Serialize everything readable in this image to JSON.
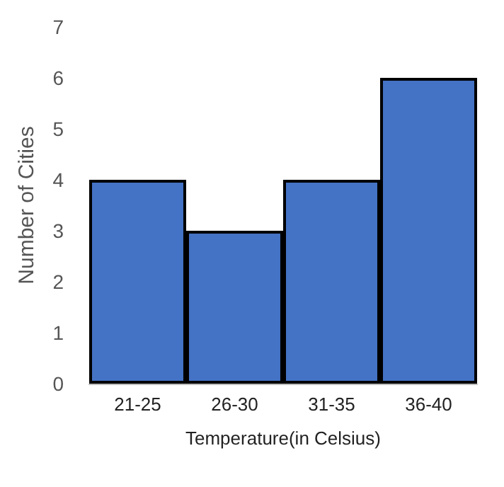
{
  "chart_data": {
    "type": "bar",
    "xlabel": "Temperature(in Celsius)",
    "ylabel": "Number of Cities",
    "categories": [
      "21-25",
      "26-30",
      "31-35",
      "36-40"
    ],
    "values": [
      4,
      3,
      4,
      6
    ],
    "color": "#4472c4",
    "ylim": [
      0,
      7
    ],
    "yticks": [
      0,
      1,
      2,
      3,
      4,
      5,
      6,
      7
    ]
  }
}
